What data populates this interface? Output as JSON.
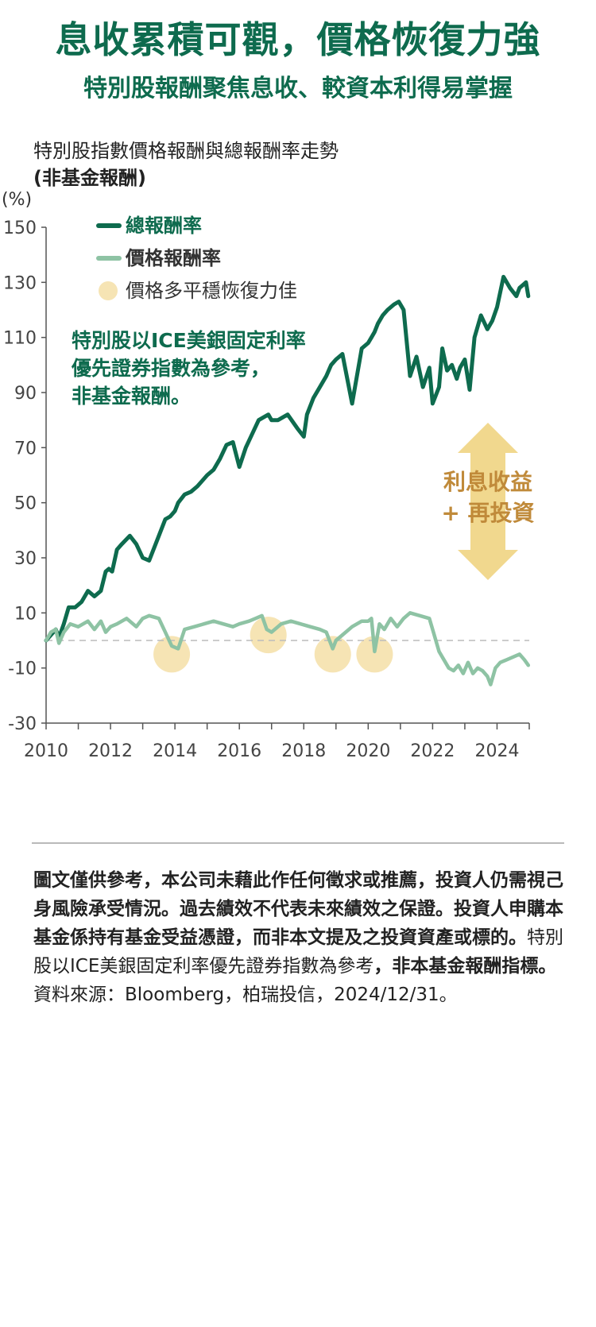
{
  "headline": "息收累積可觀，價格恢復力強",
  "subheadline": "特別股報酬聚焦息收、較資本利得易掌握",
  "chart_data": {
    "type": "line",
    "title": "特別股指數價格報酬與總報酬率走勢",
    "subtitle": "(非基金報酬)",
    "ylabel": "(%)",
    "ylim": [
      -30,
      150
    ],
    "xlim": [
      2010,
      2025
    ],
    "y_ticks": [
      150,
      130,
      110,
      90,
      70,
      50,
      30,
      10,
      -10,
      -30
    ],
    "x_ticks": [
      2010,
      2012,
      2014,
      2016,
      2018,
      2020,
      2022,
      2024
    ],
    "grid": false,
    "zero_line": "dashed",
    "legend_position": "top-left",
    "legend": [
      "總報酬率",
      "價格報酬率",
      "價格多平穩恢復力佳"
    ],
    "annotation_note": "特別股以ICE美銀固定利率優先證券指數為參考，非基金報酬。",
    "annotation_note_lines": [
      "特別股以ICE美銀固定利率",
      "優先證券指數為參考，",
      "非基金報酬。"
    ],
    "arrow_label_lines": [
      "利息收益",
      "+ 再投資"
    ],
    "recovery_circles": [
      {
        "x": 2013.9,
        "y": -5
      },
      {
        "x": 2016.9,
        "y": 2
      },
      {
        "x": 2018.9,
        "y": -5
      },
      {
        "x": 2020.2,
        "y": -5
      }
    ],
    "series": [
      {
        "name": "總報酬率",
        "color": "#0e6b4e",
        "x": [
          2010.0,
          2010.15,
          2010.3,
          2010.4,
          2010.55,
          2010.7,
          2010.9,
          2011.1,
          2011.3,
          2011.5,
          2011.7,
          2011.85,
          2011.95,
          2012.05,
          2012.2,
          2012.35,
          2012.6,
          2012.8,
          2013.0,
          2013.2,
          2013.5,
          2013.7,
          2013.85,
          2014.0,
          2014.1,
          2014.3,
          2014.5,
          2014.7,
          2015.0,
          2015.2,
          2015.4,
          2015.6,
          2015.8,
          2016.0,
          2016.2,
          2016.4,
          2016.6,
          2016.75,
          2016.9,
          2017.0,
          2017.2,
          2017.5,
          2017.8,
          2018.0,
          2018.1,
          2018.3,
          2018.5,
          2018.7,
          2018.85,
          2019.0,
          2019.2,
          2019.5,
          2019.8,
          2020.0,
          2020.1,
          2020.2,
          2020.3,
          2020.45,
          2020.6,
          2020.8,
          2020.95,
          2021.1,
          2021.3,
          2021.5,
          2021.7,
          2021.9,
          2022.0,
          2022.2,
          2022.3,
          2022.45,
          2022.6,
          2022.75,
          2022.85,
          2023.0,
          2023.15,
          2023.3,
          2023.5,
          2023.7,
          2023.85,
          2024.0,
          2024.2,
          2024.4,
          2024.6,
          2024.7,
          2024.8,
          2024.9,
          2024.97
        ],
        "values": [
          0,
          2,
          4,
          1,
          6,
          12,
          12,
          14,
          18,
          16,
          18,
          25,
          26,
          25,
          33,
          35,
          38,
          35,
          30,
          29,
          38,
          44,
          45,
          47,
          50,
          53,
          54,
          56,
          60,
          62,
          66,
          71,
          72,
          63,
          70,
          75,
          80,
          81,
          82,
          80,
          80,
          82,
          77,
          74,
          82,
          88,
          92,
          96,
          100,
          102,
          104,
          86,
          106,
          108,
          110,
          112,
          115,
          118,
          120,
          122,
          123,
          120,
          96,
          103,
          92,
          99,
          86,
          92,
          106,
          98,
          100,
          95,
          99,
          102,
          91,
          110,
          118,
          113,
          116,
          121,
          132,
          128,
          125,
          128,
          129,
          130,
          125
        ]
      },
      {
        "name": "價格報酬率",
        "color": "#8ec3a4",
        "x": [
          2010.0,
          2010.15,
          2010.3,
          2010.4,
          2010.55,
          2010.75,
          2011.0,
          2011.3,
          2011.5,
          2011.7,
          2011.85,
          2012.0,
          2012.2,
          2012.5,
          2012.8,
          2013.0,
          2013.2,
          2013.5,
          2013.7,
          2013.9,
          2014.1,
          2014.3,
          2014.6,
          2014.9,
          2015.2,
          2015.5,
          2015.8,
          2016.0,
          2016.3,
          2016.5,
          2016.7,
          2016.85,
          2017.0,
          2017.3,
          2017.6,
          2017.9,
          2018.2,
          2018.5,
          2018.7,
          2018.9,
          2019.0,
          2019.2,
          2019.5,
          2019.8,
          2020.0,
          2020.1,
          2020.2,
          2020.35,
          2020.5,
          2020.7,
          2020.9,
          2021.1,
          2021.3,
          2021.6,
          2021.9,
          2022.0,
          2022.2,
          2022.35,
          2022.5,
          2022.65,
          2022.8,
          2022.95,
          2023.1,
          2023.25,
          2023.4,
          2023.55,
          2023.7,
          2023.8,
          2023.95,
          2024.1,
          2024.3,
          2024.5,
          2024.7,
          2024.85,
          2024.97
        ],
        "values": [
          0,
          3,
          4,
          -1,
          3,
          6,
          5,
          7,
          4,
          7,
          3,
          5,
          6,
          8,
          5,
          8,
          9,
          8,
          3,
          -2,
          -3,
          4,
          5,
          6,
          7,
          6,
          5,
          6,
          7,
          8,
          9,
          4,
          3,
          6,
          7,
          6,
          5,
          4,
          3,
          -3,
          0,
          2,
          5,
          7,
          7,
          8,
          -4,
          6,
          4,
          8,
          5,
          8,
          10,
          9,
          8,
          4,
          -4,
          -7,
          -10,
          -11,
          -9,
          -12,
          -8,
          -12,
          -10,
          -11,
          -13,
          -16,
          -10,
          -8,
          -7,
          -6,
          -5,
          -7,
          -9
        ]
      }
    ]
  },
  "disclaimer": {
    "bold_1": "圖文僅供參考，本公司未藉此作任何徵求或推薦，投資人仍需視己身風險承受情況。過去績效不代表未來績效之保證。投資人申購本基金係持有基金受益憑證，而非本文提及之投資資產或標的。",
    "normal_1": "特別股以ICE美銀固定利率優先證券指數為參考",
    "bold_2": "，非本基金報酬指標。",
    "normal_2": "資料來源：Bloomberg，柏瑞投信，2024/12/31。"
  },
  "colors": {
    "brand_green": "#0e6b4e",
    "light_green": "#8ec3a4",
    "circle_fill": "#f6e4b4",
    "arrow_fill": "#f1d88e",
    "arrow_text": "#c08a3a"
  }
}
